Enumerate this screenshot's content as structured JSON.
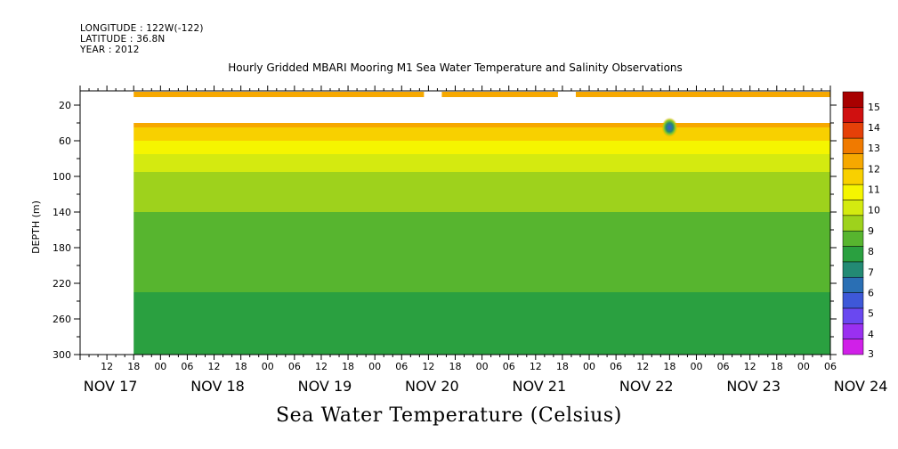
{
  "header": {
    "longitude": "LONGITUDE : 122W(-122)",
    "latitude": "LATITUDE : 36.8N",
    "year": "YEAR : 2012"
  },
  "chart_data": {
    "type": "heatmap",
    "title": "Hourly Gridded MBARI Mooring M1 Sea Water Temperature and Salinity Observations",
    "xlabel": "Sea Water Temperature (Celsius)",
    "ylabel": "DEPTH (m)",
    "x_hour_ticks": [
      "12",
      "18",
      "00",
      "06",
      "12",
      "18",
      "00",
      "06",
      "12",
      "18",
      "00",
      "06",
      "12",
      "18",
      "00",
      "06",
      "12",
      "18",
      "00",
      "06",
      "12",
      "18",
      "00",
      "06",
      "12",
      "18",
      "00",
      "06"
    ],
    "x_day_labels": [
      "NOV 17",
      "NOV 18",
      "NOV 19",
      "NOV 20",
      "NOV 21",
      "NOV 22",
      "NOV 23",
      "NOV 24"
    ],
    "x_range_hours": [
      6,
      174
    ],
    "y_ticks": [
      20,
      60,
      100,
      140,
      180,
      220,
      260,
      300
    ],
    "ylim": [
      300,
      4
    ],
    "colorbar": {
      "levels": [
        3,
        4,
        5,
        6,
        7,
        8,
        9,
        10,
        11,
        12,
        13,
        14,
        15
      ],
      "colors": [
        "#d020e8",
        "#9a30f0",
        "#6a48f0",
        "#3e58d8",
        "#2a6fb4",
        "#238a74",
        "#2aa040",
        "#57b52f",
        "#9ed21c",
        "#d4ea10",
        "#f5f500",
        "#f8d000",
        "#f6a800",
        "#f07a00",
        "#e54008",
        "#d01010",
        "#a80000"
      ]
    },
    "data_coverage": {
      "data_start_hour": 18,
      "shallow_depth_m": 5,
      "shallow_gaps_hours": [
        [
          83,
          87
        ],
        [
          113,
          117
        ]
      ],
      "deep_top_depth_m": 40
    },
    "surface_bands": [
      {
        "depth_m": 45,
        "temp_c": 14
      },
      {
        "depth_m": 60,
        "temp_c": 13
      },
      {
        "depth_m": 75,
        "temp_c": 12
      },
      {
        "depth_m": 95,
        "temp_c": 11
      },
      {
        "depth_m": 115,
        "temp_c": 10.5
      },
      {
        "depth_m": 140,
        "temp_c": 10
      },
      {
        "depth_m": 180,
        "temp_c": 9.5
      },
      {
        "depth_m": 230,
        "temp_c": 9
      },
      {
        "depth_m": 300,
        "temp_c": 8.5
      }
    ],
    "anomaly": {
      "hour": 138,
      "depth_m": 45,
      "temp_c": 5
    }
  }
}
